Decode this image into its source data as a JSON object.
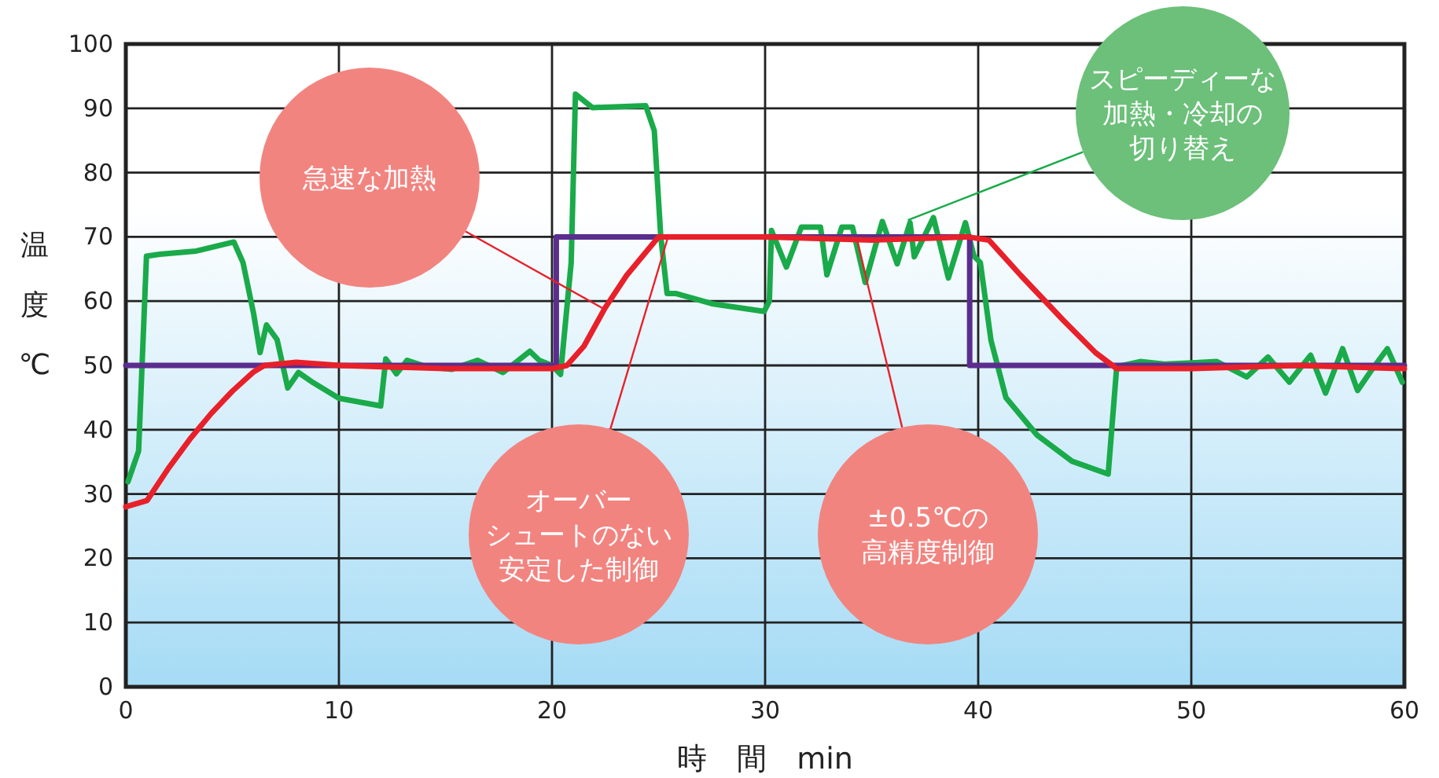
{
  "chart_data": {
    "type": "line",
    "xlabel": "時　間　min",
    "ylabel": "温度℃",
    "xlim": [
      0,
      60
    ],
    "ylim": [
      0,
      100
    ],
    "xticks": [
      0,
      10,
      20,
      30,
      40,
      50,
      60
    ],
    "yticks": [
      0,
      10,
      20,
      30,
      40,
      50,
      60,
      70,
      80,
      90,
      100
    ],
    "grid": true,
    "marker": "none",
    "line_style": "solid",
    "series": [
      {
        "color": "#1aaa4a",
        "x": [
          0.1,
          0.6,
          0.97,
          1.6,
          3.3,
          5.07,
          5.5,
          6.0,
          6.3,
          6.6,
          7.1,
          7.6,
          8.1,
          8.8,
          10.0,
          11.96,
          12.2,
          12.7,
          13.2,
          14.1,
          15.3,
          16.5,
          17.7,
          18.96,
          19.4,
          20.0,
          20.4,
          20.9,
          21.1,
          21.9,
          24.4,
          24.8,
          25.1,
          25.4,
          25.8,
          27.5,
          29.95,
          30.2,
          30.3,
          31.0,
          31.7,
          32.6,
          32.9,
          33.6,
          34.1,
          34.7,
          35.5,
          36.2,
          36.8,
          37.0,
          37.9,
          38.6,
          39.4,
          39.8,
          40.1,
          40.6,
          41.3,
          42.75,
          44.4,
          46.1,
          46.5,
          47.6,
          48.8,
          51.2,
          52.6,
          53.6,
          54.6,
          55.6,
          56.3,
          57.1,
          57.8,
          58.4,
          59.2,
          59.9
        ],
        "values": [
          31.9,
          36.7,
          67,
          67.3,
          67.8,
          69.2,
          66,
          58,
          52,
          56.3,
          54,
          46.5,
          48.9,
          47.3,
          44.9,
          43.7,
          51,
          48.7,
          50.8,
          49.8,
          49.4,
          50.8,
          48.9,
          52.2,
          50.8,
          50,
          48.6,
          66,
          92.2,
          90.1,
          90.4,
          86.5,
          70.2,
          61.2,
          61.2,
          59.6,
          58.4,
          60,
          71,
          65.3,
          71.5,
          71.5,
          64.1,
          71.5,
          71.5,
          62.9,
          72.4,
          65.8,
          72.2,
          66.9,
          73,
          63.6,
          72.2,
          67,
          66,
          53.9,
          45,
          39.2,
          35.1,
          33.1,
          49.8,
          50.6,
          50.2,
          50.6,
          48.2,
          51.3,
          47.4,
          51.6,
          45.7,
          52.6,
          46.1,
          49,
          52.6,
          47.4
        ]
      },
      {
        "color": "#5b2d8e",
        "x": [
          0,
          20.2,
          20.2,
          39.6,
          39.6,
          60
        ],
        "values": [
          50,
          50,
          70,
          70,
          50,
          50
        ]
      },
      {
        "color": "#e8202a",
        "x": [
          0,
          1,
          2,
          3,
          4,
          5,
          6,
          6.5,
          8,
          10,
          15,
          20,
          20.7,
          21.5,
          22.5,
          23.5,
          24.5,
          25,
          30,
          35,
          39.5,
          40.5,
          42,
          44,
          45.5,
          46.5,
          50,
          55,
          60
        ],
        "values": [
          28,
          29,
          34,
          38.5,
          42.5,
          46,
          49,
          50,
          50.5,
          50,
          49.5,
          49.5,
          50,
          53,
          59,
          64,
          68,
          70,
          70,
          69.5,
          70,
          69.5,
          64,
          57,
          52,
          49.5,
          49.5,
          50,
          49.5
        ]
      }
    ],
    "annotations": [
      "急速な加熱",
      "オーバーシュートのない安定した制御",
      "±0.5℃の高精度制御",
      {
        "text": "スピーディーな加熱・冷却の切り替え",
        "x": 36.7,
        "y": 72.6
      }
    ]
  }
}
